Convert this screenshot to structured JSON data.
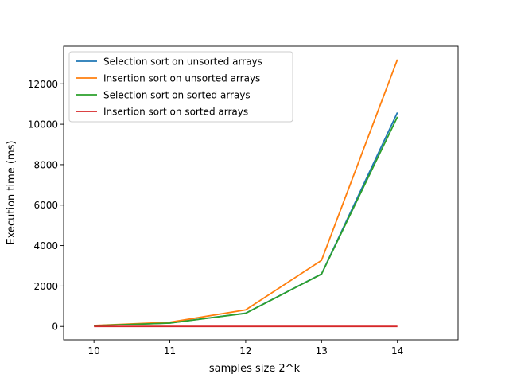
{
  "chart_data": {
    "type": "line",
    "title": "",
    "xlabel": "samples size 2^k",
    "ylabel": "Execution time (ms)",
    "x": [
      10,
      11,
      12,
      13,
      14
    ],
    "x_ticks": [
      10,
      11,
      12,
      13,
      14
    ],
    "y_ticks": [
      0,
      2000,
      4000,
      6000,
      8000,
      10000,
      12000
    ],
    "xlim": [
      9.6,
      14.8
    ],
    "ylim": [
      -660,
      13860
    ],
    "grid": false,
    "legend_position": "upper-left",
    "series": [
      {
        "name": "Selection sort on unsorted arrays",
        "color": "#1f77b4",
        "values": [
          40,
          170,
          660,
          2600,
          10580
        ]
      },
      {
        "name": "Insertion sort on unsorted arrays",
        "color": "#ff7f0e",
        "values": [
          50,
          210,
          820,
          3270,
          13200
        ]
      },
      {
        "name": "Selection sort on sorted arrays",
        "color": "#2ca02c",
        "values": [
          40,
          165,
          650,
          2590,
          10360
        ]
      },
      {
        "name": "Insertion sort on sorted arrays",
        "color": "#d62728",
        "values": [
          0,
          0,
          0,
          0,
          0
        ]
      }
    ]
  }
}
